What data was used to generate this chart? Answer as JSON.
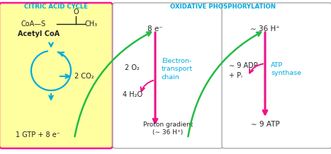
{
  "title_left": "CITRIC ACID CYCLE",
  "title_right": "OXIDATIVE PHOSPHORYLATION",
  "title_color": "#00AADD",
  "box1_bg": "#FFFFA0",
  "box1_border": "#FF1493",
  "box2_bg": "#FFFFFF",
  "box2_border": "#AAAAAA",
  "box3_bg": "#FFFFFF",
  "box3_border": "#AAAAAA",
  "green_color": "#22BB44",
  "pink_color": "#EE1188",
  "blue_color": "#00AADD",
  "text_dark": "#222222",
  "acetyl_coa_label": "Acetyl CoA",
  "co2_label": "2 CO₂",
  "gtp_label": "1 GTP + 8 e⁻",
  "electrons_label": "8 e⁻",
  "o2_label": "2 O₂",
  "h2o_label": "4 H₂O",
  "etc_label": "Electron-\ntransport\nchain",
  "proton_label": "Proton gradient\n(∼ 36 H⁺)",
  "h_plus_label": "∼ 36 H⁺",
  "adp_label": "∼ 9 ADP\n+ Pᵢ",
  "atp_synthase_label": "ATP\nsynthase",
  "atp_label": "∼ 9 ATP",
  "coa_formula": "CoA—S",
  "ch3_label": "CH₃",
  "carbonyl_label": "O"
}
